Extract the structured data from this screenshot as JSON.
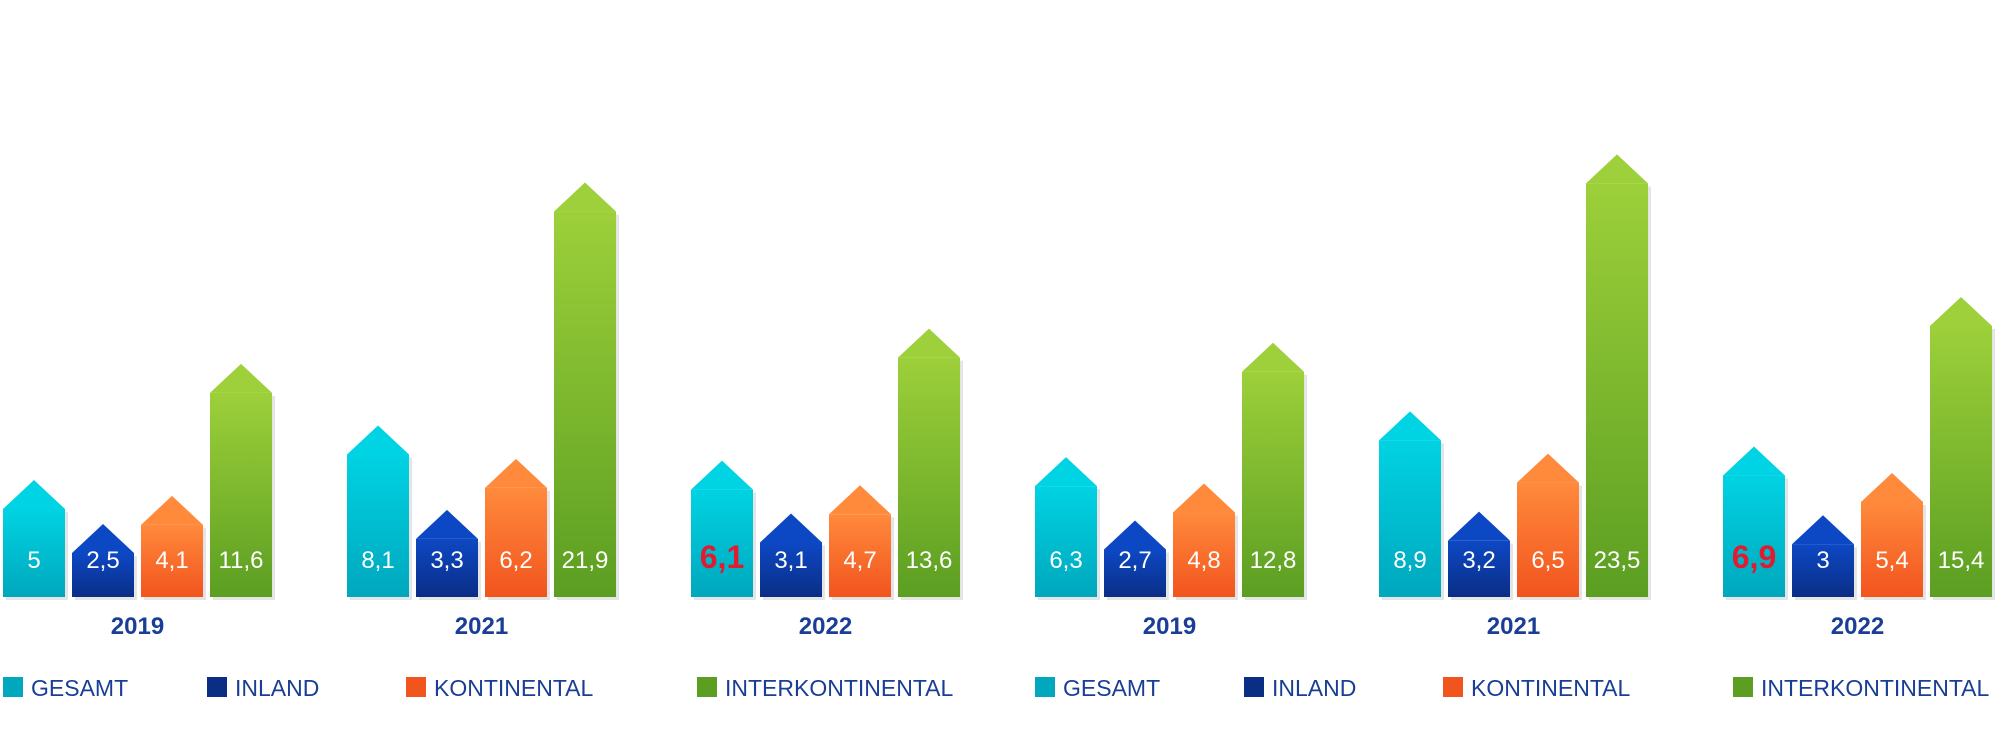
{
  "chart_data": [
    {
      "type": "bar",
      "categories": [
        "2019",
        "2021",
        "2022"
      ],
      "series": [
        {
          "name": "GESAMT",
          "values": [
            5,
            8.1,
            6.1
          ]
        },
        {
          "name": "INLAND",
          "values": [
            2.5,
            3.3,
            3.1
          ]
        },
        {
          "name": "KONTINENTAL",
          "values": [
            4.1,
            6.2,
            4.7
          ]
        },
        {
          "name": "INTERKONTINENTAL",
          "values": [
            11.6,
            21.9,
            13.6
          ]
        }
      ],
      "value_labels": [
        [
          "5",
          "8,1",
          "6,1"
        ],
        [
          "2,5",
          "3,3",
          "3,1"
        ],
        [
          "4,1",
          "6,2",
          "4,7"
        ],
        [
          "11,6",
          "21,9",
          "13,6"
        ]
      ],
      "highlight": {
        "series": 0,
        "category": 2
      },
      "legend": "bottom",
      "grid": false
    },
    {
      "type": "bar",
      "categories": [
        "2019",
        "2021",
        "2022"
      ],
      "series": [
        {
          "name": "GESAMT",
          "values": [
            6.3,
            8.9,
            6.9
          ]
        },
        {
          "name": "INLAND",
          "values": [
            2.7,
            3.2,
            3
          ]
        },
        {
          "name": "KONTINENTAL",
          "values": [
            4.8,
            6.5,
            5.4
          ]
        },
        {
          "name": "INTERKONTINENTAL",
          "values": [
            12.8,
            23.5,
            15.4
          ]
        }
      ],
      "value_labels": [
        [
          "6,3",
          "8,9",
          "6,9"
        ],
        [
          "2,7",
          "3,2",
          "3"
        ],
        [
          "4,8",
          "6,5",
          "5,4"
        ],
        [
          "12,8",
          "23,5",
          "15,4"
        ]
      ],
      "highlight": {
        "series": 0,
        "category": 2
      },
      "legend": "bottom",
      "grid": false
    }
  ],
  "colors": {
    "gesamt_top": "#00d3e3",
    "gesamt_bottom": "#00a7bd",
    "inland_top": "#0d48c4",
    "inland_bottom": "#0a2e86",
    "kontinental_top": "#ff8a3c",
    "kontinental_bottom": "#f2541e",
    "interkontinental_top": "#9dd03a",
    "interkontinental_bottom": "#5b9e22",
    "label_text": "#ffffff",
    "highlight_text": "#e01b2f",
    "category_text": "#1a3e96",
    "legend_text": "#1a3e96"
  }
}
